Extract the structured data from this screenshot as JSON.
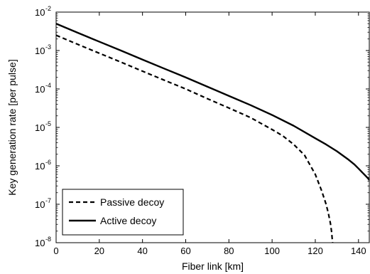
{
  "chart_data": {
    "type": "line",
    "title": "",
    "xlabel": "Fiber link [km]",
    "ylabel": "Key generation rate [per pulse]",
    "xlim": [
      0,
      145
    ],
    "ylim": [
      1e-08,
      0.01
    ],
    "yscale": "log",
    "x_ticks": [
      0,
      20,
      40,
      60,
      80,
      100,
      120,
      140
    ],
    "y_ticks": [
      {
        "base": "10",
        "exp": "-8",
        "value": 1e-08
      },
      {
        "base": "10",
        "exp": "-7",
        "value": 1e-07
      },
      {
        "base": "10",
        "exp": "-6",
        "value": 1e-06
      },
      {
        "base": "10",
        "exp": "-5",
        "value": 1e-05
      },
      {
        "base": "10",
        "exp": "-4",
        "value": 0.0001
      },
      {
        "base": "10",
        "exp": "-3",
        "value": 0.001
      },
      {
        "base": "10",
        "exp": "-2",
        "value": 0.01
      }
    ],
    "grid": false,
    "legend_position": "bottom-left",
    "series": [
      {
        "name": "Passive decoy",
        "style": "dashed",
        "color": "#000000",
        "x": [
          0,
          10,
          20,
          30,
          40,
          50,
          60,
          70,
          80,
          90,
          100,
          105,
          110,
          115,
          120,
          123,
          125,
          126,
          127,
          127.5,
          128
        ],
        "y": [
          0.0025,
          0.00145,
          0.00085,
          0.0005,
          0.00029,
          0.00017,
          0.0001,
          5.6e-05,
          3.2e-05,
          1.8e-05,
          8.8e-06,
          6e-06,
          3.6e-06,
          1.9e-06,
          6e-07,
          2.2e-07,
          1e-07,
          6e-08,
          3.2e-08,
          2e-08,
          1e-08
        ]
      },
      {
        "name": "Active decoy",
        "style": "solid",
        "color": "#000000",
        "x": [
          0,
          10,
          20,
          30,
          40,
          50,
          60,
          70,
          80,
          90,
          100,
          110,
          120,
          125,
          130,
          135,
          138,
          140,
          142,
          144,
          145
        ],
        "y": [
          0.005,
          0.0029,
          0.0017,
          0.001,
          0.00058,
          0.00034,
          0.0002,
          0.000115,
          6.6e-05,
          3.8e-05,
          2.1e-05,
          1.1e-05,
          5.2e-06,
          3.6e-06,
          2.4e-06,
          1.5e-06,
          1.1e-06,
          8.5e-07,
          6.5e-07,
          5e-07,
          4.3e-07
        ]
      }
    ]
  }
}
